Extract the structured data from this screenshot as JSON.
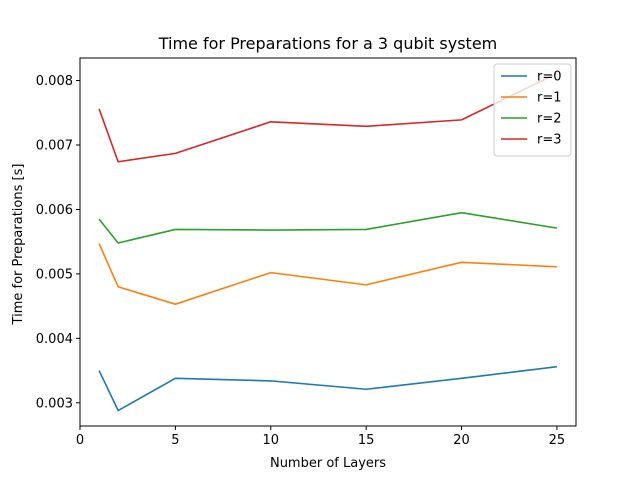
{
  "chart_data": {
    "type": "line",
    "title": "Time for Preparations for a 3 qubit system",
    "xlabel": "Number of Layers",
    "ylabel": "Time for Preparations [s]",
    "x": [
      1,
      2,
      5,
      10,
      15,
      20,
      25
    ],
    "xlim": [
      0,
      26
    ],
    "ylim": [
      0.00264,
      0.00835
    ],
    "xticks": [
      0,
      5,
      10,
      15,
      20,
      25
    ],
    "yticks": [
      0.003,
      0.004,
      0.005,
      0.006,
      0.007,
      0.008
    ],
    "ytick_labels": [
      "0.003",
      "0.004",
      "0.005",
      "0.006",
      "0.007",
      "0.008"
    ],
    "legend_position": "top-right",
    "grid": false,
    "series": [
      {
        "name": "r=0",
        "color": "#1f77b4",
        "values": [
          0.0035,
          0.00288,
          0.00338,
          0.00334,
          0.00321,
          0.00338,
          0.00356
        ]
      },
      {
        "name": "r=1",
        "color": "#ff7f0e",
        "values": [
          0.00547,
          0.0048,
          0.00453,
          0.00502,
          0.00483,
          0.00518,
          0.00511
        ]
      },
      {
        "name": "r=2",
        "color": "#2ca02c",
        "values": [
          0.00585,
          0.00548,
          0.00569,
          0.00568,
          0.00569,
          0.00595,
          0.00571
        ]
      },
      {
        "name": "r=3",
        "color": "#d62728",
        "values": [
          0.00756,
          0.00674,
          0.00687,
          0.00736,
          0.00729,
          0.00739,
          0.00811
        ]
      }
    ]
  }
}
